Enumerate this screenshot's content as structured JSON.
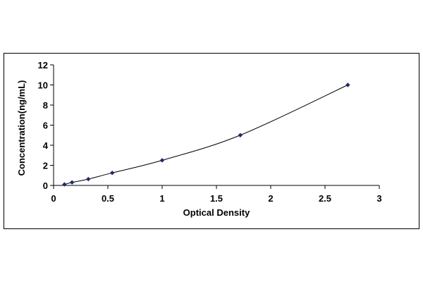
{
  "chart_data": {
    "type": "scatter",
    "title": "",
    "xlabel": "Optical Density",
    "ylabel": "Concentration(ng/mL)",
    "xlim": [
      0,
      3
    ],
    "ylim": [
      0,
      12
    ],
    "x_ticks": [
      0,
      0.5,
      1,
      1.5,
      2,
      2.5,
      3
    ],
    "y_ticks": [
      0,
      2,
      4,
      6,
      8,
      10,
      12
    ],
    "x_tick_labels": [
      "0",
      "0.5",
      "1",
      "1.5",
      "2",
      "2.5",
      "3"
    ],
    "y_tick_labels": [
      "0",
      "2",
      "4",
      "6",
      "8",
      "10",
      "12"
    ],
    "grid": false,
    "legend": "none",
    "trendline": "smooth curve",
    "series": [
      {
        "marker": "diamond",
        "color": "#1f2a6b",
        "points": [
          {
            "x": 0.1,
            "y": 0.1
          },
          {
            "x": 0.17,
            "y": 0.3
          },
          {
            "x": 0.32,
            "y": 0.63
          },
          {
            "x": 0.54,
            "y": 1.25
          },
          {
            "x": 1.0,
            "y": 2.5
          },
          {
            "x": 1.72,
            "y": 5.0
          },
          {
            "x": 2.71,
            "y": 10.0
          }
        ]
      }
    ]
  }
}
